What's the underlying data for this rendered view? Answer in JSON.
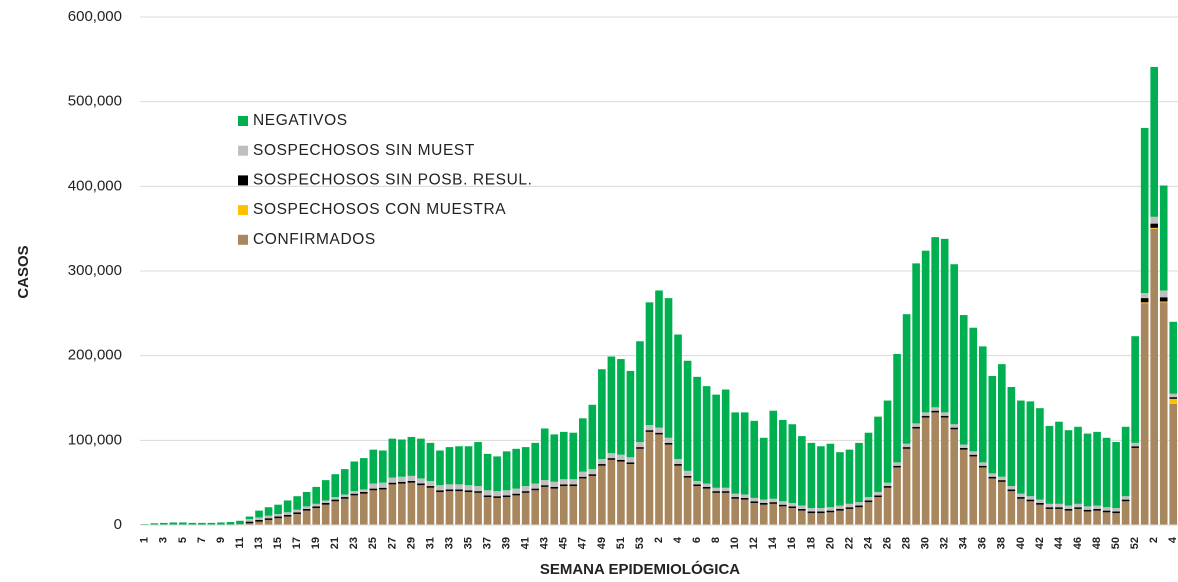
{
  "chart_data": {
    "type": "stacked_bar",
    "x_label": "SEMANA EPIDEMIOLÓGICA",
    "y_label": "CASOS",
    "ylim": [
      0,
      600000
    ],
    "yticks": [
      0,
      {
        "value": 100000,
        "label": "100,000"
      },
      {
        "value": 200000,
        "label": "200,000"
      },
      {
        "value": 300000,
        "label": "300,000"
      },
      {
        "value": 400000,
        "label": "400,000"
      },
      {
        "value": 500000,
        "label": "500,000"
      },
      {
        "value": 600000,
        "label": "600,000"
      }
    ],
    "grid": true,
    "legend": "upper left",
    "categories": [
      "1",
      null,
      "3",
      null,
      "5",
      null,
      "7",
      null,
      "9",
      null,
      "11",
      null,
      "13",
      null,
      "15",
      null,
      "17",
      null,
      "19",
      null,
      "21",
      null,
      "23",
      null,
      "25",
      null,
      "27",
      null,
      "29",
      null,
      "31",
      null,
      "33",
      null,
      "35",
      null,
      "37",
      null,
      "39",
      null,
      "41",
      null,
      "43",
      null,
      "45",
      null,
      "47",
      null,
      "49",
      null,
      "51",
      null,
      "53",
      null,
      "2",
      null,
      "4",
      null,
      "6",
      null,
      "8",
      null,
      "10",
      null,
      "12",
      null,
      "14",
      null,
      "16",
      null,
      "18",
      null,
      "20",
      null,
      "22",
      null,
      "24",
      null,
      "26",
      null,
      "28",
      null,
      "30",
      null,
      "32",
      null,
      "34",
      null,
      "36",
      null,
      "38",
      null,
      "40",
      null,
      "42",
      null,
      "44",
      null,
      "46",
      null,
      "48",
      null,
      "50",
      null,
      "52",
      null,
      "2",
      null,
      "4"
    ],
    "series": [
      {
        "name": "CONFIRMADOS",
        "color": "#a8865e",
        "values": [
          0,
          0,
          0,
          0,
          0,
          0,
          0,
          0,
          0,
          500,
          1000,
          2000,
          4000,
          6000,
          8000,
          10000,
          13000,
          17000,
          20000,
          24000,
          28000,
          31000,
          35000,
          37000,
          41000,
          42000,
          48000,
          49000,
          50000,
          47000,
          44000,
          39000,
          40000,
          40000,
          39000,
          38000,
          33000,
          32000,
          33000,
          35000,
          38000,
          41000,
          45000,
          43000,
          46000,
          46000,
          55000,
          58000,
          70000,
          77000,
          75000,
          72000,
          90000,
          110000,
          107000,
          95000,
          70000,
          56000,
          46000,
          43000,
          38000,
          38000,
          31000,
          30000,
          26000,
          24000,
          25000,
          22000,
          20000,
          17000,
          14000,
          14000,
          15000,
          17000,
          19000,
          21000,
          27000,
          33000,
          44000,
          68000,
          90000,
          114000,
          127000,
          133000,
          127000,
          113000,
          89000,
          81000,
          68000,
          55000,
          51000,
          40000,
          31000,
          28000,
          24000,
          19000,
          19000,
          17000,
          19000,
          16000,
          17000,
          15000,
          14000,
          28000,
          91000,
          262000,
          350000,
          263000,
          143000
        ]
      },
      {
        "name": "SOSPECHOSOS CON MUESTRA",
        "color": "#ffc000",
        "values": [
          0,
          0,
          0,
          0,
          0,
          0,
          0,
          0,
          0,
          0,
          0,
          0,
          0,
          0,
          0,
          0,
          0,
          0,
          0,
          0,
          0,
          0,
          0,
          0,
          0,
          0,
          0,
          0,
          0,
          0,
          0,
          0,
          0,
          0,
          0,
          0,
          0,
          0,
          0,
          0,
          0,
          0,
          0,
          0,
          0,
          0,
          0,
          0,
          0,
          0,
          0,
          0,
          0,
          0,
          0,
          0,
          0,
          0,
          0,
          0,
          0,
          0,
          0,
          0,
          0,
          0,
          0,
          0,
          0,
          0,
          0,
          0,
          0,
          0,
          0,
          0,
          0,
          0,
          0,
          0,
          0,
          0,
          0,
          0,
          0,
          0,
          0,
          0,
          0,
          0,
          0,
          0,
          0,
          0,
          0,
          0,
          0,
          0,
          0,
          0,
          0,
          0,
          0,
          0,
          0,
          1000,
          1000,
          1000,
          6000
        ]
      },
      {
        "name": "SOSPECHOSOS SIN POSB. RESUL.",
        "color": "#000000",
        "values": [
          0,
          0,
          0,
          0,
          0,
          0,
          0,
          0,
          0,
          0,
          0,
          2000,
          2000,
          2000,
          2000,
          2000,
          2000,
          2000,
          2000,
          2000,
          2000,
          2000,
          2000,
          2000,
          2000,
          2000,
          2000,
          2000,
          2000,
          2000,
          2000,
          2000,
          2000,
          2000,
          2000,
          2000,
          2000,
          2000,
          2000,
          2000,
          2000,
          2000,
          2000,
          2000,
          2000,
          2000,
          2000,
          2000,
          2000,
          2000,
          2000,
          2000,
          2000,
          2000,
          2000,
          2000,
          2000,
          2000,
          2000,
          2000,
          2000,
          2000,
          2000,
          2000,
          2000,
          2000,
          2000,
          2000,
          2000,
          2000,
          2000,
          2000,
          2000,
          2000,
          2000,
          2000,
          2000,
          2000,
          2000,
          2000,
          2000,
          2000,
          2000,
          2000,
          2000,
          2000,
          2000,
          2000,
          2000,
          2000,
          2000,
          2000,
          2000,
          2000,
          2000,
          2000,
          2000,
          2000,
          2000,
          2000,
          2000,
          2000,
          2000,
          2000,
          2000,
          5000,
          5000,
          5000,
          2000
        ]
      },
      {
        "name": "SOSPECHOSOS SIN MUEST",
        "color": "#bfbfbf",
        "values": [
          0,
          0,
          0,
          0,
          0,
          0,
          0,
          0,
          0,
          0,
          0,
          3000,
          3000,
          3000,
          3000,
          3000,
          3000,
          3000,
          3000,
          3000,
          3000,
          3000,
          3000,
          3000,
          6000,
          6000,
          6000,
          6000,
          6000,
          6000,
          6000,
          6000,
          6000,
          6000,
          6000,
          6000,
          6000,
          6000,
          6000,
          6000,
          6000,
          6000,
          6000,
          6000,
          6000,
          6000,
          6000,
          6000,
          6000,
          6000,
          6000,
          6000,
          6000,
          6000,
          6000,
          6000,
          6000,
          6000,
          4000,
          4000,
          4000,
          4000,
          4000,
          4000,
          4000,
          4000,
          4000,
          4000,
          4000,
          4000,
          4000,
          4000,
          4000,
          4000,
          4000,
          4000,
          4000,
          4000,
          4000,
          4000,
          4000,
          4000,
          4000,
          4000,
          4000,
          4000,
          4000,
          4000,
          4000,
          4000,
          4000,
          4000,
          4000,
          4000,
          4000,
          4000,
          4000,
          4000,
          4000,
          4000,
          4000,
          4000,
          4000,
          4000,
          4000,
          6000,
          8000,
          8000,
          4000
        ]
      },
      {
        "name": "NEGATIVOS",
        "color": "#00b050",
        "values": [
          1000,
          2000,
          2500,
          3000,
          3000,
          2500,
          2500,
          2500,
          3000,
          3000,
          4000,
          3000,
          8000,
          10000,
          11000,
          14000,
          16000,
          17000,
          20000,
          24000,
          27000,
          30000,
          35000,
          37000,
          40000,
          38000,
          46000,
          44000,
          46000,
          47000,
          45000,
          41000,
          44000,
          45000,
          46000,
          52000,
          43000,
          41000,
          46000,
          47000,
          46000,
          48000,
          61000,
          56000,
          56000,
          55000,
          63000,
          76000,
          106000,
          114000,
          113000,
          102000,
          119000,
          145000,
          162000,
          165000,
          147000,
          130000,
          123000,
          115000,
          110000,
          116000,
          96000,
          97000,
          91000,
          73000,
          104000,
          96000,
          93000,
          82000,
          77000,
          73000,
          75000,
          63000,
          64000,
          70000,
          76000,
          89000,
          97000,
          128000,
          153000,
          189000,
          191000,
          201000,
          205000,
          189000,
          153000,
          146000,
          137000,
          115000,
          133000,
          117000,
          110000,
          112000,
          108000,
          92000,
          97000,
          89000,
          91000,
          86000,
          87000,
          82000,
          78000,
          82000,
          126000,
          195000,
          177000,
          124000,
          85000
        ]
      }
    ]
  }
}
